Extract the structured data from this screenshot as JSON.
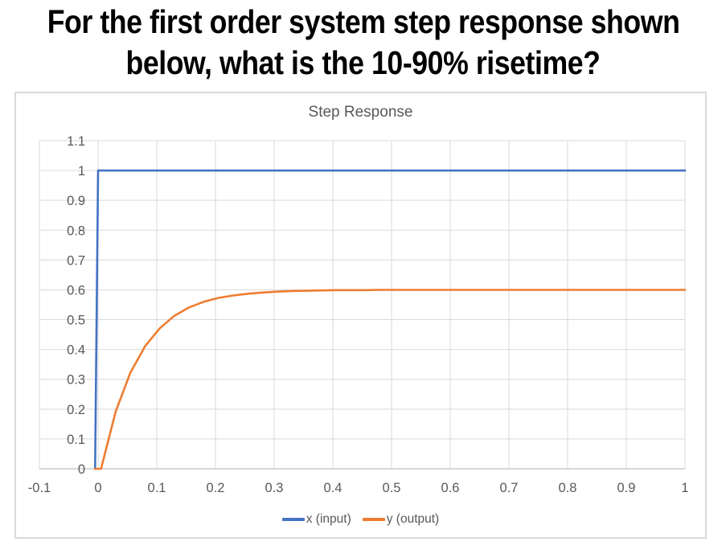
{
  "question": {
    "line1": "For the first order system step response shown",
    "line2": "below, what is the 10-90% risetime?"
  },
  "chart_data": {
    "type": "line",
    "title": "Step Response",
    "xlabel": "",
    "ylabel": "",
    "xlim": [
      -0.1,
      1
    ],
    "ylim": [
      0,
      1.1
    ],
    "grid": true,
    "grid_color": "#D9D9D9",
    "axis_color": "#C0C0C0",
    "tick_color": "#595959",
    "title_color": "#595959",
    "legend_position": "bottom",
    "x_ticks": [
      {
        "v": -0.1,
        "label": "-0.1"
      },
      {
        "v": 0,
        "label": "0"
      },
      {
        "v": 0.1,
        "label": "0.1"
      },
      {
        "v": 0.2,
        "label": "0.2"
      },
      {
        "v": 0.3,
        "label": "0.3"
      },
      {
        "v": 0.4,
        "label": "0.4"
      },
      {
        "v": 0.5,
        "label": "0.5"
      },
      {
        "v": 0.6,
        "label": "0.6"
      },
      {
        "v": 0.7,
        "label": "0.7"
      },
      {
        "v": 0.8,
        "label": "0.8"
      },
      {
        "v": 0.9,
        "label": "0.9"
      },
      {
        "v": 1,
        "label": "1"
      }
    ],
    "y_ticks": [
      {
        "v": 0,
        "label": "0"
      },
      {
        "v": 0.1,
        "label": "0.1"
      },
      {
        "v": 0.2,
        "label": "0.2"
      },
      {
        "v": 0.3,
        "label": "0.3"
      },
      {
        "v": 0.4,
        "label": "0.4"
      },
      {
        "v": 0.5,
        "label": "0.5"
      },
      {
        "v": 0.6,
        "label": "0.6"
      },
      {
        "v": 0.7,
        "label": "0.7"
      },
      {
        "v": 0.8,
        "label": "0.8"
      },
      {
        "v": 0.9,
        "label": "0.9"
      },
      {
        "v": 1,
        "label": "1"
      },
      {
        "v": 1.1,
        "label": "1.1"
      }
    ],
    "series": [
      {
        "name": "x (input)",
        "color": "#4472C4",
        "points": [
          [
            -0.005,
            0
          ],
          [
            0,
            1
          ],
          [
            1,
            1
          ]
        ]
      },
      {
        "name": "y (output)",
        "color": "#ED7D31",
        "points": [
          [
            -0.005,
            0
          ],
          [
            0.005,
            0
          ],
          [
            0.03,
            0.192
          ],
          [
            0.055,
            0.322
          ],
          [
            0.08,
            0.411
          ],
          [
            0.105,
            0.471
          ],
          [
            0.13,
            0.513
          ],
          [
            0.155,
            0.541
          ],
          [
            0.18,
            0.56
          ],
          [
            0.205,
            0.573
          ],
          [
            0.23,
            0.581
          ],
          [
            0.255,
            0.587
          ],
          [
            0.28,
            0.591
          ],
          [
            0.305,
            0.594
          ],
          [
            0.33,
            0.596
          ],
          [
            0.355,
            0.597
          ],
          [
            0.38,
            0.598
          ],
          [
            0.405,
            0.599
          ],
          [
            0.43,
            0.599
          ],
          [
            0.455,
            0.599
          ],
          [
            0.48,
            0.6
          ],
          [
            0.55,
            0.6
          ],
          [
            0.65,
            0.6
          ],
          [
            0.75,
            0.6
          ],
          [
            0.85,
            0.6
          ],
          [
            0.95,
            0.6
          ],
          [
            1,
            0.6
          ]
        ]
      }
    ]
  }
}
